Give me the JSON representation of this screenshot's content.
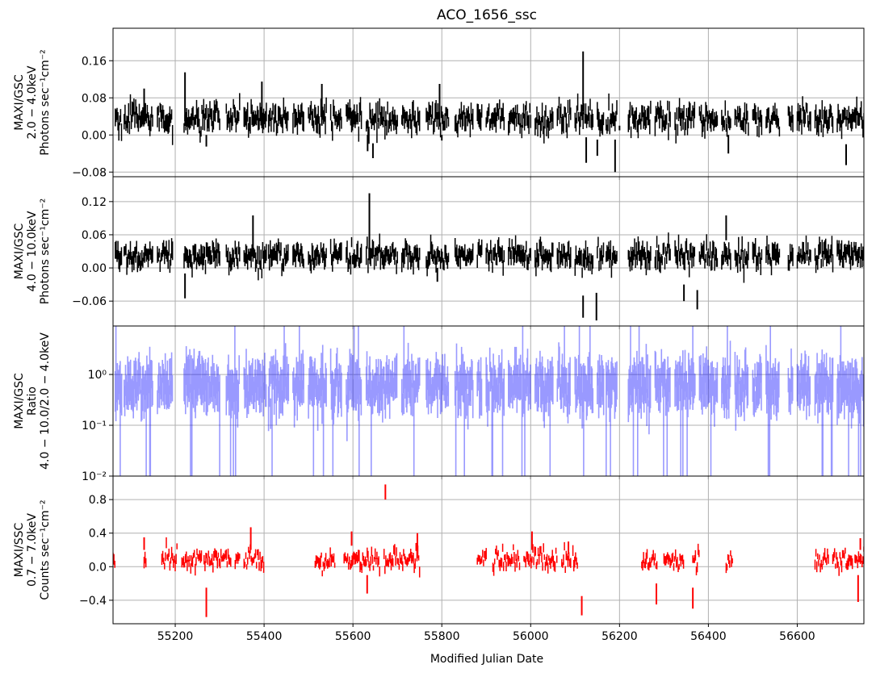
{
  "chart_data": {
    "type": "errorbar",
    "title": "ACO_1656_ssc",
    "xlabel": "Modified Julian Date",
    "xlim": [
      55060,
      56750
    ],
    "xticks": [
      55200,
      55400,
      55600,
      55800,
      56000,
      56200,
      56400,
      56600
    ],
    "xtick_labels": [
      "55200",
      "55400",
      "55600",
      "55800",
      "56000",
      "56200",
      "56400",
      "56600"
    ],
    "grid": true,
    "shared_x": true,
    "panels": [
      {
        "id": "gsc-2-4",
        "ylabel_lines": [
          "MAXI/GSC",
          "2.0 − 4.0keV",
          "Photons sec⁻¹cm⁻²"
        ],
        "ylim": [
          -0.09,
          0.23
        ],
        "yscale": "linear",
        "yticks": [
          -0.08,
          0.0,
          0.08,
          0.16
        ],
        "ytick_labels": [
          "−0.08",
          "0.00",
          "0.08",
          "0.16"
        ],
        "color": "#000000",
        "series": {
          "mean": 0.035,
          "scatter": 0.013,
          "err": 0.016,
          "coverage": [
            [
              55065,
              55080
            ],
            [
              55085,
              55150
            ],
            [
              55160,
              55195
            ],
            [
              55220,
              55300
            ],
            [
              55315,
              55345
            ],
            [
              55355,
              55405
            ],
            [
              55410,
              55455
            ],
            [
              55465,
              55490
            ],
            [
              55500,
              55540
            ],
            [
              55550,
              55575
            ],
            [
              55585,
              55620
            ],
            [
              55630,
              55700
            ],
            [
              55710,
              55750
            ],
            [
              55765,
              55815
            ],
            [
              55830,
              55870
            ],
            [
              55880,
              55890
            ],
            [
              55900,
              55940
            ],
            [
              55950,
              56000
            ],
            [
              56010,
              56050
            ],
            [
              56060,
              56090
            ],
            [
              56100,
              56140
            ],
            [
              56150,
              56165
            ],
            [
              56170,
              56195
            ],
            [
              56220,
              56270
            ],
            [
              56280,
              56315
            ],
            [
              56325,
              56370
            ],
            [
              56380,
              56420
            ],
            [
              56430,
              56450
            ],
            [
              56460,
              56490
            ],
            [
              56500,
              56520
            ],
            [
              56530,
              56560
            ],
            [
              56580,
              56590
            ],
            [
              56600,
              56630
            ],
            [
              56640,
              56680
            ],
            [
              56690,
              56750
            ]
          ],
          "spikes": [
            {
              "x": 55130,
              "lo": 0.03,
              "hi": 0.1
            },
            {
              "x": 55222,
              "lo": 0.03,
              "hi": 0.135
            },
            {
              "x": 55270,
              "lo": -0.025,
              "hi": 0.0
            },
            {
              "x": 55395,
              "lo": 0.02,
              "hi": 0.115
            },
            {
              "x": 55530,
              "lo": 0.02,
              "hi": 0.11
            },
            {
              "x": 55633,
              "lo": -0.035,
              "hi": 0.0
            },
            {
              "x": 55645,
              "lo": -0.05,
              "hi": -0.018
            },
            {
              "x": 55795,
              "lo": 0.02,
              "hi": 0.11
            },
            {
              "x": 55800,
              "lo": -0.012,
              "hi": 0.0
            },
            {
              "x": 56118,
              "lo": 0.05,
              "hi": 0.18
            },
            {
              "x": 56125,
              "lo": -0.06,
              "hi": -0.005
            },
            {
              "x": 56150,
              "lo": -0.045,
              "hi": -0.01
            },
            {
              "x": 56190,
              "lo": -0.08,
              "hi": -0.01
            },
            {
              "x": 56200,
              "lo": 0.01,
              "hi": 0.02
            },
            {
              "x": 56445,
              "lo": -0.04,
              "hi": 0.0
            },
            {
              "x": 56710,
              "lo": -0.065,
              "hi": -0.02
            }
          ]
        }
      },
      {
        "id": "gsc-4-10",
        "ylabel_lines": [
          "MAXI/GSC",
          "4.0 − 10.0keV",
          "Photons sec⁻¹cm⁻²"
        ],
        "ylim": [
          -0.105,
          0.165
        ],
        "yscale": "linear",
        "yticks": [
          -0.06,
          0.0,
          0.06,
          0.12
        ],
        "ytick_labels": [
          "−0.06",
          "0.00",
          "0.06",
          "0.12"
        ],
        "color": "#000000",
        "series": {
          "mean": 0.022,
          "scatter": 0.01,
          "err": 0.013,
          "coverage": [
            [
              55065,
              55080
            ],
            [
              55085,
              55150
            ],
            [
              55160,
              55195
            ],
            [
              55220,
              55300
            ],
            [
              55315,
              55345
            ],
            [
              55355,
              55405
            ],
            [
              55410,
              55455
            ],
            [
              55465,
              55490
            ],
            [
              55500,
              55540
            ],
            [
              55550,
              55575
            ],
            [
              55585,
              55620
            ],
            [
              55630,
              55700
            ],
            [
              55710,
              55750
            ],
            [
              55765,
              55815
            ],
            [
              55830,
              55870
            ],
            [
              55880,
              55890
            ],
            [
              55900,
              55940
            ],
            [
              55950,
              56000
            ],
            [
              56010,
              56050
            ],
            [
              56060,
              56090
            ],
            [
              56100,
              56140
            ],
            [
              56150,
              56165
            ],
            [
              56170,
              56195
            ],
            [
              56220,
              56270
            ],
            [
              56280,
              56315
            ],
            [
              56325,
              56370
            ],
            [
              56380,
              56420
            ],
            [
              56430,
              56450
            ],
            [
              56460,
              56490
            ],
            [
              56500,
              56520
            ],
            [
              56530,
              56560
            ],
            [
              56580,
              56590
            ],
            [
              56600,
              56630
            ],
            [
              56640,
              56680
            ],
            [
              56690,
              56750
            ]
          ],
          "spikes": [
            {
              "x": 55222,
              "lo": -0.055,
              "hi": -0.01
            },
            {
              "x": 55375,
              "lo": 0.03,
              "hi": 0.095
            },
            {
              "x": 55637,
              "lo": 0.03,
              "hi": 0.135
            },
            {
              "x": 55790,
              "lo": -0.025,
              "hi": 0.0
            },
            {
              "x": 56118,
              "lo": -0.09,
              "hi": -0.05
            },
            {
              "x": 56148,
              "lo": -0.095,
              "hi": -0.045
            },
            {
              "x": 56345,
              "lo": -0.06,
              "hi": -0.03
            },
            {
              "x": 56375,
              "lo": -0.075,
              "hi": -0.04
            },
            {
              "x": 56440,
              "lo": 0.05,
              "hi": 0.095
            }
          ]
        }
      },
      {
        "id": "ratio",
        "ylabel_lines": [
          "MAXI/GSC",
          "Ratio",
          "4.0 − 10.0/2.0 − 4.0keV"
        ],
        "ylim": [
          0.01,
          9.0
        ],
        "yscale": "log",
        "yticks": [
          0.01,
          0.1,
          1.0
        ],
        "ytick_labels": [
          "10⁻²",
          "10⁻¹",
          "10⁰"
        ],
        "color": "#0000ff",
        "alpha": 0.4,
        "series": {
          "mean": 0.6,
          "scatter": 0.25,
          "err_log": 0.35,
          "coverage": [
            [
              55065,
              55080
            ],
            [
              55085,
              55150
            ],
            [
              55160,
              55195
            ],
            [
              55220,
              55300
            ],
            [
              55315,
              55345
            ],
            [
              55355,
              55405
            ],
            [
              55410,
              55455
            ],
            [
              55465,
              55490
            ],
            [
              55500,
              55540
            ],
            [
              55550,
              55575
            ],
            [
              55585,
              55620
            ],
            [
              55630,
              55700
            ],
            [
              55710,
              55750
            ],
            [
              55765,
              55815
            ],
            [
              55830,
              55870
            ],
            [
              55880,
              55890
            ],
            [
              55900,
              55940
            ],
            [
              55950,
              56000
            ],
            [
              56010,
              56050
            ],
            [
              56060,
              56090
            ],
            [
              56100,
              56140
            ],
            [
              56150,
              56165
            ],
            [
              56170,
              56195
            ],
            [
              56220,
              56270
            ],
            [
              56280,
              56315
            ],
            [
              56325,
              56370
            ],
            [
              56380,
              56420
            ],
            [
              56430,
              56450
            ],
            [
              56460,
              56490
            ],
            [
              56500,
              56520
            ],
            [
              56530,
              56560
            ],
            [
              56580,
              56590
            ],
            [
              56600,
              56630
            ],
            [
              56640,
              56680
            ],
            [
              56690,
              56750
            ]
          ],
          "drop_fraction": 0.06,
          "rise_fraction": 0.02
        }
      },
      {
        "id": "ssc",
        "ylabel_lines": [
          "MAXI/SSC",
          "0.7 − 7.0keV",
          "Counts sec⁻¹cm⁻²"
        ],
        "ylim": [
          -0.68,
          1.08
        ],
        "yscale": "linear",
        "yticks": [
          -0.4,
          0.0,
          0.4,
          0.8
        ],
        "ytick_labels": [
          "−0.4",
          "0.0",
          "0.4",
          "0.8"
        ],
        "color": "#ff0000",
        "series": {
          "mean": 0.08,
          "scatter": 0.06,
          "err": 0.05,
          "coverage": [
            [
              55060,
              55065
            ],
            [
              55130,
              55135
            ],
            [
              55170,
              55205
            ],
            [
              55215,
              55260
            ],
            [
              55265,
              55325
            ],
            [
              55335,
              55345
            ],
            [
              55355,
              55400
            ],
            [
              55515,
              55560
            ],
            [
              55580,
              55660
            ],
            [
              55670,
              55750
            ],
            [
              55880,
              55900
            ],
            [
              55915,
              55975
            ],
            [
              55985,
              56060
            ],
            [
              56070,
              56090
            ],
            [
              56095,
              56105
            ],
            [
              56250,
              56285
            ],
            [
              56300,
              56345
            ],
            [
              56365,
              56380
            ],
            [
              56440,
              56455
            ],
            [
              56640,
              56670
            ],
            [
              56680,
              56725
            ],
            [
              56730,
              56750
            ]
          ],
          "spikes": [
            {
              "x": 55130,
              "lo": 0.2,
              "hi": 0.35
            },
            {
              "x": 55270,
              "lo": -0.6,
              "hi": -0.25
            },
            {
              "x": 55370,
              "lo": 0.2,
              "hi": 0.47
            },
            {
              "x": 55597,
              "lo": 0.25,
              "hi": 0.42
            },
            {
              "x": 55632,
              "lo": -0.32,
              "hi": -0.1
            },
            {
              "x": 55673,
              "lo": 0.8,
              "hi": 0.98
            },
            {
              "x": 55745,
              "lo": 0.1,
              "hi": 0.4
            },
            {
              "x": 56003,
              "lo": 0.2,
              "hi": 0.42
            },
            {
              "x": 56085,
              "lo": 0.15,
              "hi": 0.3
            },
            {
              "x": 56115,
              "lo": -0.58,
              "hi": -0.35
            },
            {
              "x": 56283,
              "lo": -0.45,
              "hi": -0.2
            },
            {
              "x": 56365,
              "lo": -0.5,
              "hi": -0.25
            },
            {
              "x": 56737,
              "lo": -0.42,
              "hi": -0.1
            },
            {
              "x": 56742,
              "lo": 0.2,
              "hi": 0.34
            }
          ]
        }
      }
    ]
  }
}
